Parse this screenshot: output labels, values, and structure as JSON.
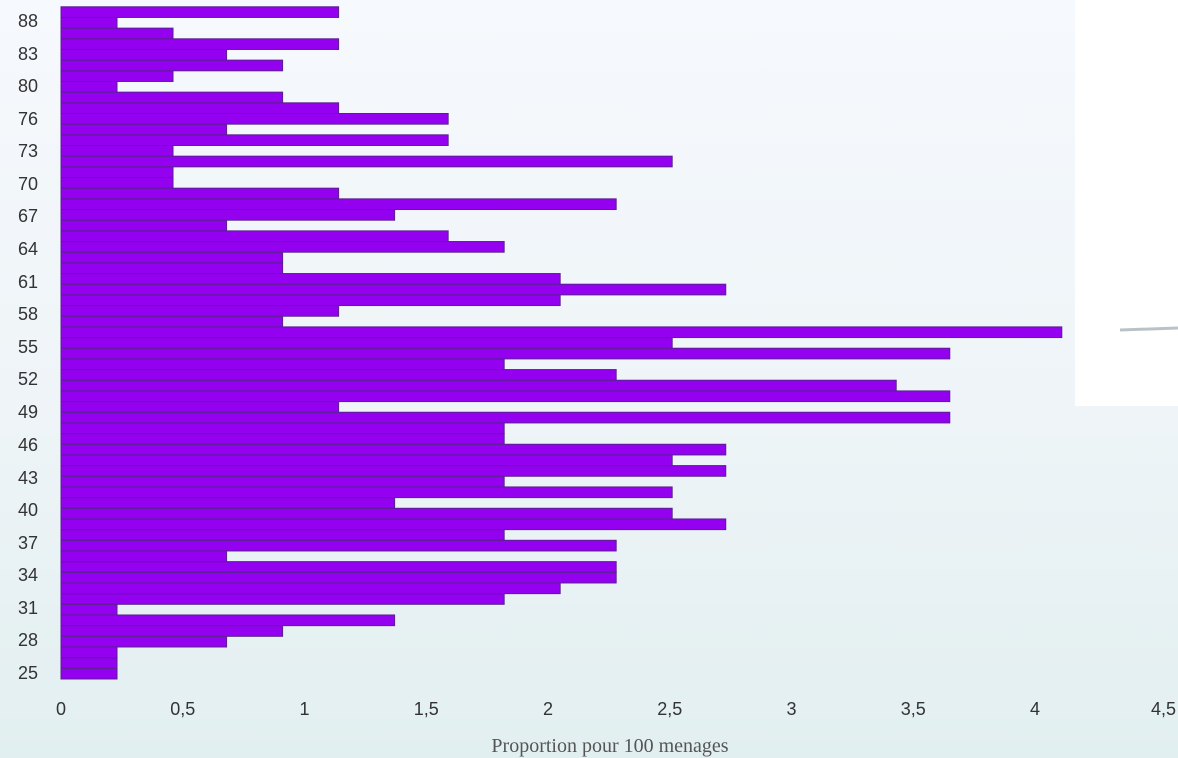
{
  "chart_data": {
    "type": "bar",
    "orientation": "horizontal",
    "title": "",
    "xlabel": "Proportion pour 100 menages",
    "ylabel": "",
    "xlim": [
      0,
      4.5
    ],
    "x_ticks": [
      "0",
      "0,5",
      "1",
      "1,5",
      "2",
      "2,5",
      "3",
      "3,5",
      "4",
      "4,5"
    ],
    "y_ticks": [
      "25",
      "28",
      "31",
      "34",
      "37",
      "40",
      "43",
      "46",
      "49",
      "52",
      "55",
      "58",
      "61",
      "64",
      "67",
      "70",
      "73",
      "76",
      "80",
      "83",
      "88"
    ],
    "grid": false,
    "legend": "none",
    "bar_color": "#9400f0",
    "bar_edge_color": "#5a2090",
    "values_bottom_to_top": [
      0.23,
      0.23,
      0.23,
      0.68,
      0.91,
      1.37,
      0.23,
      1.82,
      2.05,
      2.28,
      2.28,
      0.68,
      2.28,
      1.82,
      2.73,
      2.51,
      1.37,
      2.51,
      1.82,
      2.73,
      2.51,
      2.73,
      1.82,
      1.82,
      3.65,
      1.14,
      3.65,
      3.43,
      2.28,
      1.82,
      3.65,
      2.51,
      4.11,
      0.91,
      1.14,
      2.05,
      2.73,
      2.05,
      0.91,
      0.91,
      1.82,
      1.59,
      0.68,
      1.37,
      2.28,
      1.14,
      0.46,
      0.46,
      2.51,
      0.46,
      1.59,
      0.68,
      1.59,
      1.14,
      0.91,
      0.23,
      0.46,
      0.91,
      0.68,
      1.14,
      0.46,
      0.23,
      1.14
    ]
  }
}
